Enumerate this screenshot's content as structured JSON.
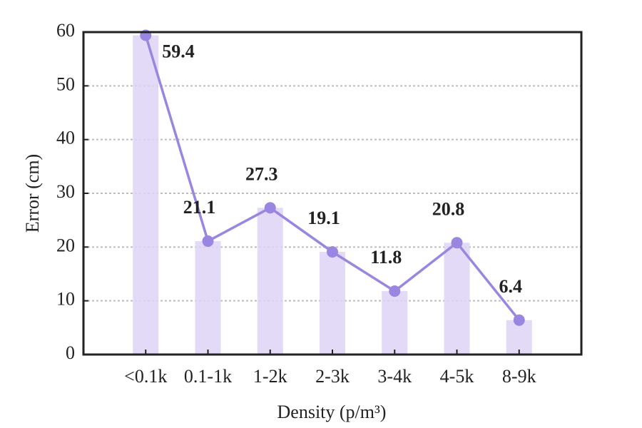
{
  "chart_data": {
    "type": "barline",
    "xlabel": "Density (p/m³)",
    "ylabel": "Error (cm)",
    "categories": [
      "<0.1k",
      "0.1-1k",
      "1-2k",
      "2-3k",
      "3-4k",
      "4-5k",
      "8-9k"
    ],
    "values": [
      59.4,
      21.1,
      27.3,
      19.1,
      11.8,
      20.8,
      6.4
    ],
    "color": "#9a86e0",
    "bar_color": "#ddd4f4",
    "ylim": [
      0,
      60
    ],
    "yticks": [
      0,
      10,
      20,
      30,
      40,
      50,
      60
    ],
    "grid": true
  }
}
